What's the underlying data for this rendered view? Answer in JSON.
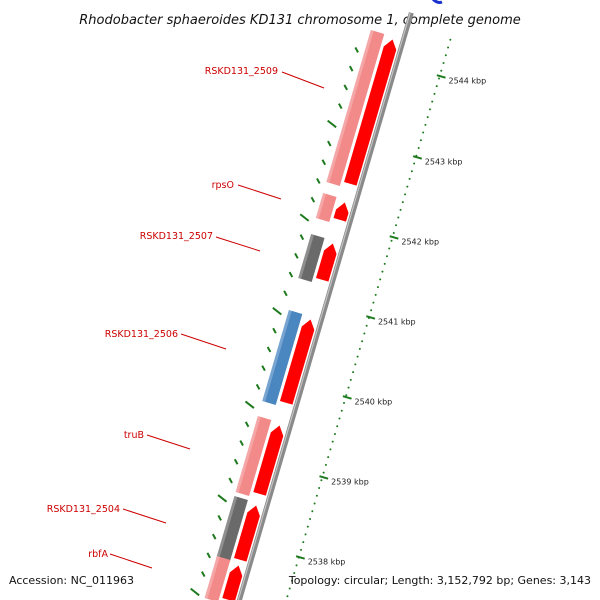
{
  "title": "Rhodobacter sphaeroides KD131 chromosome 1, complete genome",
  "footer": {
    "accession": "Accession: NC_011963",
    "topology": "Topology: circular; Length: 3,152,792 bp; Genes: 3,143"
  },
  "colors": {
    "backbone": "#8a8a8a",
    "forward_gene": "#ff0000",
    "cds_pink": "#f28a8a",
    "cds_gray": "#6a6a6a",
    "cds_blue": "#4a86c0",
    "tick": "#1e7a1e",
    "label": "#cc0000"
  },
  "kbp_labels": [
    "2544 kbp",
    "2543 kbp",
    "2542 kbp",
    "2541 kbp",
    "2540 kbp",
    "2539 kbp",
    "2538 kbp"
  ],
  "genes": [
    {
      "label": "RSKD131_2509",
      "color_key": "cds_pink"
    },
    {
      "label": "rpsO",
      "color_key": "cds_pink"
    },
    {
      "label": "RSKD131_2507",
      "color_key": "cds_gray"
    },
    {
      "label": "RSKD131_2506",
      "color_key": "cds_blue"
    },
    {
      "label": "truB",
      "color_key": "cds_pink"
    },
    {
      "label": "RSKD131_2504",
      "color_key": "cds_gray"
    },
    {
      "label": "rbfA",
      "color_key": "cds_pink"
    }
  ]
}
